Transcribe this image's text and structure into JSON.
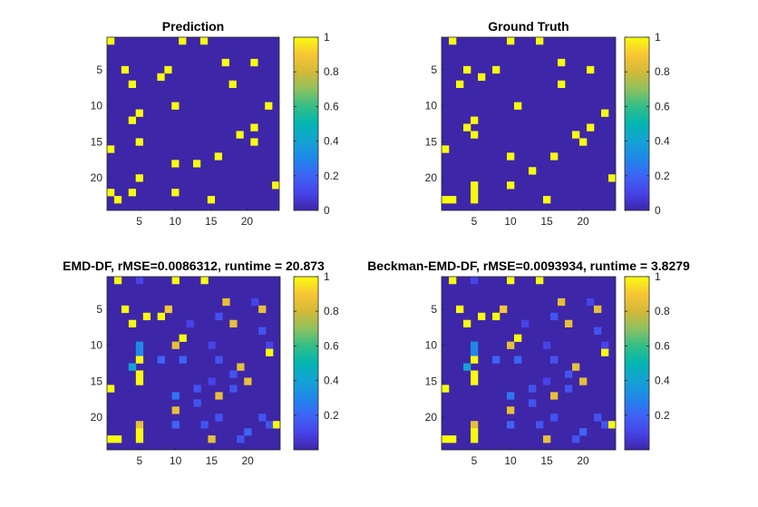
{
  "figure": {
    "colors": {
      "background": "#ffffff",
      "heatmap_low": "#3e26a8",
      "heatmap_high": "#f9fb0e",
      "colormap": "parula"
    }
  },
  "chart_data": [
    {
      "type": "heatmap",
      "title": "Prediction",
      "size": 24,
      "xticks": [
        5,
        10,
        15,
        20
      ],
      "yticks": [
        5,
        10,
        15,
        20
      ],
      "colorbar": {
        "range": [
          0,
          1
        ],
        "ticks": [
          "0",
          "0.2",
          "0.4",
          "0.6",
          "0.8",
          "1"
        ]
      },
      "cells": [
        [
          1,
          1,
          1
        ],
        [
          11,
          1,
          1
        ],
        [
          14,
          1,
          1
        ],
        [
          17,
          4,
          1
        ],
        [
          21,
          4,
          1
        ],
        [
          3,
          5,
          1
        ],
        [
          9,
          5,
          1
        ],
        [
          8,
          6,
          1
        ],
        [
          4,
          7,
          1
        ],
        [
          18,
          7,
          1
        ],
        [
          10,
          10,
          1
        ],
        [
          23,
          10,
          1
        ],
        [
          5,
          11,
          1
        ],
        [
          4,
          12,
          1
        ],
        [
          21,
          13,
          1
        ],
        [
          19,
          14,
          1
        ],
        [
          5,
          15,
          1
        ],
        [
          21,
          15,
          1
        ],
        [
          1,
          16,
          1
        ],
        [
          16,
          17,
          1
        ],
        [
          10,
          18,
          1
        ],
        [
          13,
          18,
          1
        ],
        [
          5,
          20,
          1
        ],
        [
          24,
          21,
          1
        ],
        [
          1,
          22,
          1
        ],
        [
          4,
          22,
          1
        ],
        [
          10,
          22,
          1
        ],
        [
          2,
          23,
          1
        ],
        [
          15,
          23,
          1
        ]
      ]
    },
    {
      "type": "heatmap",
      "title": "Ground Truth",
      "size": 24,
      "xticks": [
        5,
        10,
        15,
        20
      ],
      "yticks": [
        5,
        10,
        15,
        20
      ],
      "colorbar": {
        "range": [
          0,
          1
        ],
        "ticks": [
          "0",
          "0.2",
          "0.4",
          "0.6",
          "0.8",
          "1"
        ]
      },
      "cells": [
        [
          2,
          1,
          1
        ],
        [
          10,
          1,
          1
        ],
        [
          14,
          1,
          1
        ],
        [
          17,
          4,
          1
        ],
        [
          4,
          5,
          1
        ],
        [
          8,
          5,
          1
        ],
        [
          21,
          5,
          1
        ],
        [
          6,
          6,
          1
        ],
        [
          3,
          7,
          1
        ],
        [
          17,
          7,
          1
        ],
        [
          11,
          10,
          1
        ],
        [
          23,
          11,
          1
        ],
        [
          5,
          12,
          1
        ],
        [
          4,
          13,
          1
        ],
        [
          21,
          13,
          1
        ],
        [
          5,
          14,
          1
        ],
        [
          19,
          14,
          1
        ],
        [
          20,
          15,
          1
        ],
        [
          1,
          16,
          1
        ],
        [
          10,
          17,
          1
        ],
        [
          16,
          17,
          1
        ],
        [
          13,
          19,
          1
        ],
        [
          24,
          20,
          1
        ],
        [
          5,
          21,
          1
        ],
        [
          10,
          21,
          1
        ],
        [
          5,
          22,
          1
        ],
        [
          1,
          23,
          1
        ],
        [
          2,
          23,
          1
        ],
        [
          5,
          23,
          1
        ],
        [
          15,
          23,
          1
        ]
      ]
    },
    {
      "type": "heatmap",
      "title": "EMD-DF, rMSE=0.0086312, runtime = 20.873",
      "size": 24,
      "xticks": [
        5,
        10,
        15,
        20
      ],
      "yticks": [
        5,
        10,
        15,
        20
      ],
      "colorbar": {
        "range": [
          0,
          1
        ],
        "ticks": [
          "0.2",
          "0.4",
          "0.6",
          "0.8",
          "1"
        ]
      },
      "cells": [
        [
          2,
          1,
          1
        ],
        [
          5,
          1,
          0.1
        ],
        [
          10,
          1,
          1
        ],
        [
          14,
          1,
          1
        ],
        [
          17,
          4,
          0.85
        ],
        [
          21,
          4,
          0.1
        ],
        [
          3,
          5,
          1
        ],
        [
          9,
          5,
          0.9
        ],
        [
          22,
          5,
          0.85
        ],
        [
          6,
          6,
          1
        ],
        [
          8,
          6,
          1
        ],
        [
          16,
          6,
          0.15
        ],
        [
          4,
          7,
          1
        ],
        [
          12,
          7,
          0.1
        ],
        [
          18,
          7,
          0.85
        ],
        [
          22,
          8,
          0.15
        ],
        [
          11,
          9,
          1
        ],
        [
          5,
          10,
          0.3
        ],
        [
          10,
          10,
          0.85
        ],
        [
          15,
          10,
          0.1
        ],
        [
          23,
          10,
          0.1
        ],
        [
          5,
          11,
          0.3
        ],
        [
          23,
          11,
          1
        ],
        [
          5,
          12,
          1
        ],
        [
          8,
          12,
          0.2
        ],
        [
          11,
          12,
          0.2
        ],
        [
          16,
          12,
          0.15
        ],
        [
          4,
          13,
          0.4
        ],
        [
          19,
          13,
          0.85
        ],
        [
          5,
          14,
          1
        ],
        [
          18,
          14,
          0.15
        ],
        [
          5,
          15,
          1
        ],
        [
          15,
          15,
          0.1
        ],
        [
          20,
          15,
          0.85
        ],
        [
          1,
          16,
          1
        ],
        [
          13,
          16,
          0.15
        ],
        [
          18,
          16,
          0.15
        ],
        [
          10,
          17,
          0.25
        ],
        [
          16,
          17,
          0.85
        ],
        [
          13,
          18,
          0.15
        ],
        [
          10,
          19,
          0.85
        ],
        [
          16,
          20,
          0.15
        ],
        [
          22,
          20,
          0.15
        ],
        [
          5,
          21,
          0.85
        ],
        [
          10,
          21,
          0.2
        ],
        [
          14,
          21,
          0.15
        ],
        [
          23,
          21,
          0.15
        ],
        [
          24,
          21,
          1
        ],
        [
          5,
          22,
          1
        ],
        [
          20,
          22,
          0.2
        ],
        [
          1,
          23,
          1
        ],
        [
          2,
          23,
          1
        ],
        [
          5,
          23,
          1
        ],
        [
          15,
          23,
          0.85
        ],
        [
          19,
          23,
          0.15
        ]
      ]
    },
    {
      "type": "heatmap",
      "title": "Beckman-EMD-DF, rMSE=0.0093934, runtime = 3.8279",
      "size": 24,
      "xticks": [
        5,
        10,
        15,
        20
      ],
      "yticks": [
        5,
        10,
        15,
        20
      ],
      "colorbar": {
        "range": [
          0,
          1
        ],
        "ticks": [
          "0.2",
          "0.4",
          "0.6",
          "0.8",
          "1"
        ]
      },
      "cells": [
        [
          2,
          1,
          1
        ],
        [
          5,
          1,
          0.1
        ],
        [
          10,
          1,
          1
        ],
        [
          14,
          1,
          1
        ],
        [
          17,
          4,
          0.85
        ],
        [
          21,
          4,
          0.1
        ],
        [
          3,
          5,
          1
        ],
        [
          9,
          5,
          0.9
        ],
        [
          22,
          5,
          0.85
        ],
        [
          6,
          6,
          1
        ],
        [
          8,
          6,
          1
        ],
        [
          16,
          6,
          0.15
        ],
        [
          4,
          7,
          1
        ],
        [
          12,
          7,
          0.1
        ],
        [
          18,
          7,
          0.85
        ],
        [
          22,
          8,
          0.15
        ],
        [
          11,
          9,
          1
        ],
        [
          5,
          10,
          0.3
        ],
        [
          10,
          10,
          0.85
        ],
        [
          15,
          10,
          0.1
        ],
        [
          23,
          10,
          0.1
        ],
        [
          5,
          11,
          0.3
        ],
        [
          23,
          11,
          1
        ],
        [
          5,
          12,
          1
        ],
        [
          8,
          12,
          0.2
        ],
        [
          11,
          12,
          0.2
        ],
        [
          16,
          12,
          0.15
        ],
        [
          4,
          13,
          0.4
        ],
        [
          19,
          13,
          0.85
        ],
        [
          5,
          14,
          1
        ],
        [
          18,
          14,
          0.15
        ],
        [
          5,
          15,
          1
        ],
        [
          15,
          15,
          0.1
        ],
        [
          20,
          15,
          0.85
        ],
        [
          1,
          16,
          1
        ],
        [
          13,
          16,
          0.15
        ],
        [
          18,
          16,
          0.15
        ],
        [
          10,
          17,
          0.25
        ],
        [
          16,
          17,
          0.85
        ],
        [
          13,
          18,
          0.15
        ],
        [
          10,
          19,
          0.85
        ],
        [
          16,
          20,
          0.15
        ],
        [
          22,
          20,
          0.15
        ],
        [
          5,
          21,
          0.85
        ],
        [
          10,
          21,
          0.2
        ],
        [
          14,
          21,
          0.15
        ],
        [
          23,
          21,
          0.15
        ],
        [
          24,
          21,
          1
        ],
        [
          5,
          22,
          1
        ],
        [
          20,
          22,
          0.2
        ],
        [
          1,
          23,
          1
        ],
        [
          2,
          23,
          1
        ],
        [
          5,
          23,
          1
        ],
        [
          15,
          23,
          0.85
        ],
        [
          19,
          23,
          0.15
        ]
      ]
    }
  ]
}
